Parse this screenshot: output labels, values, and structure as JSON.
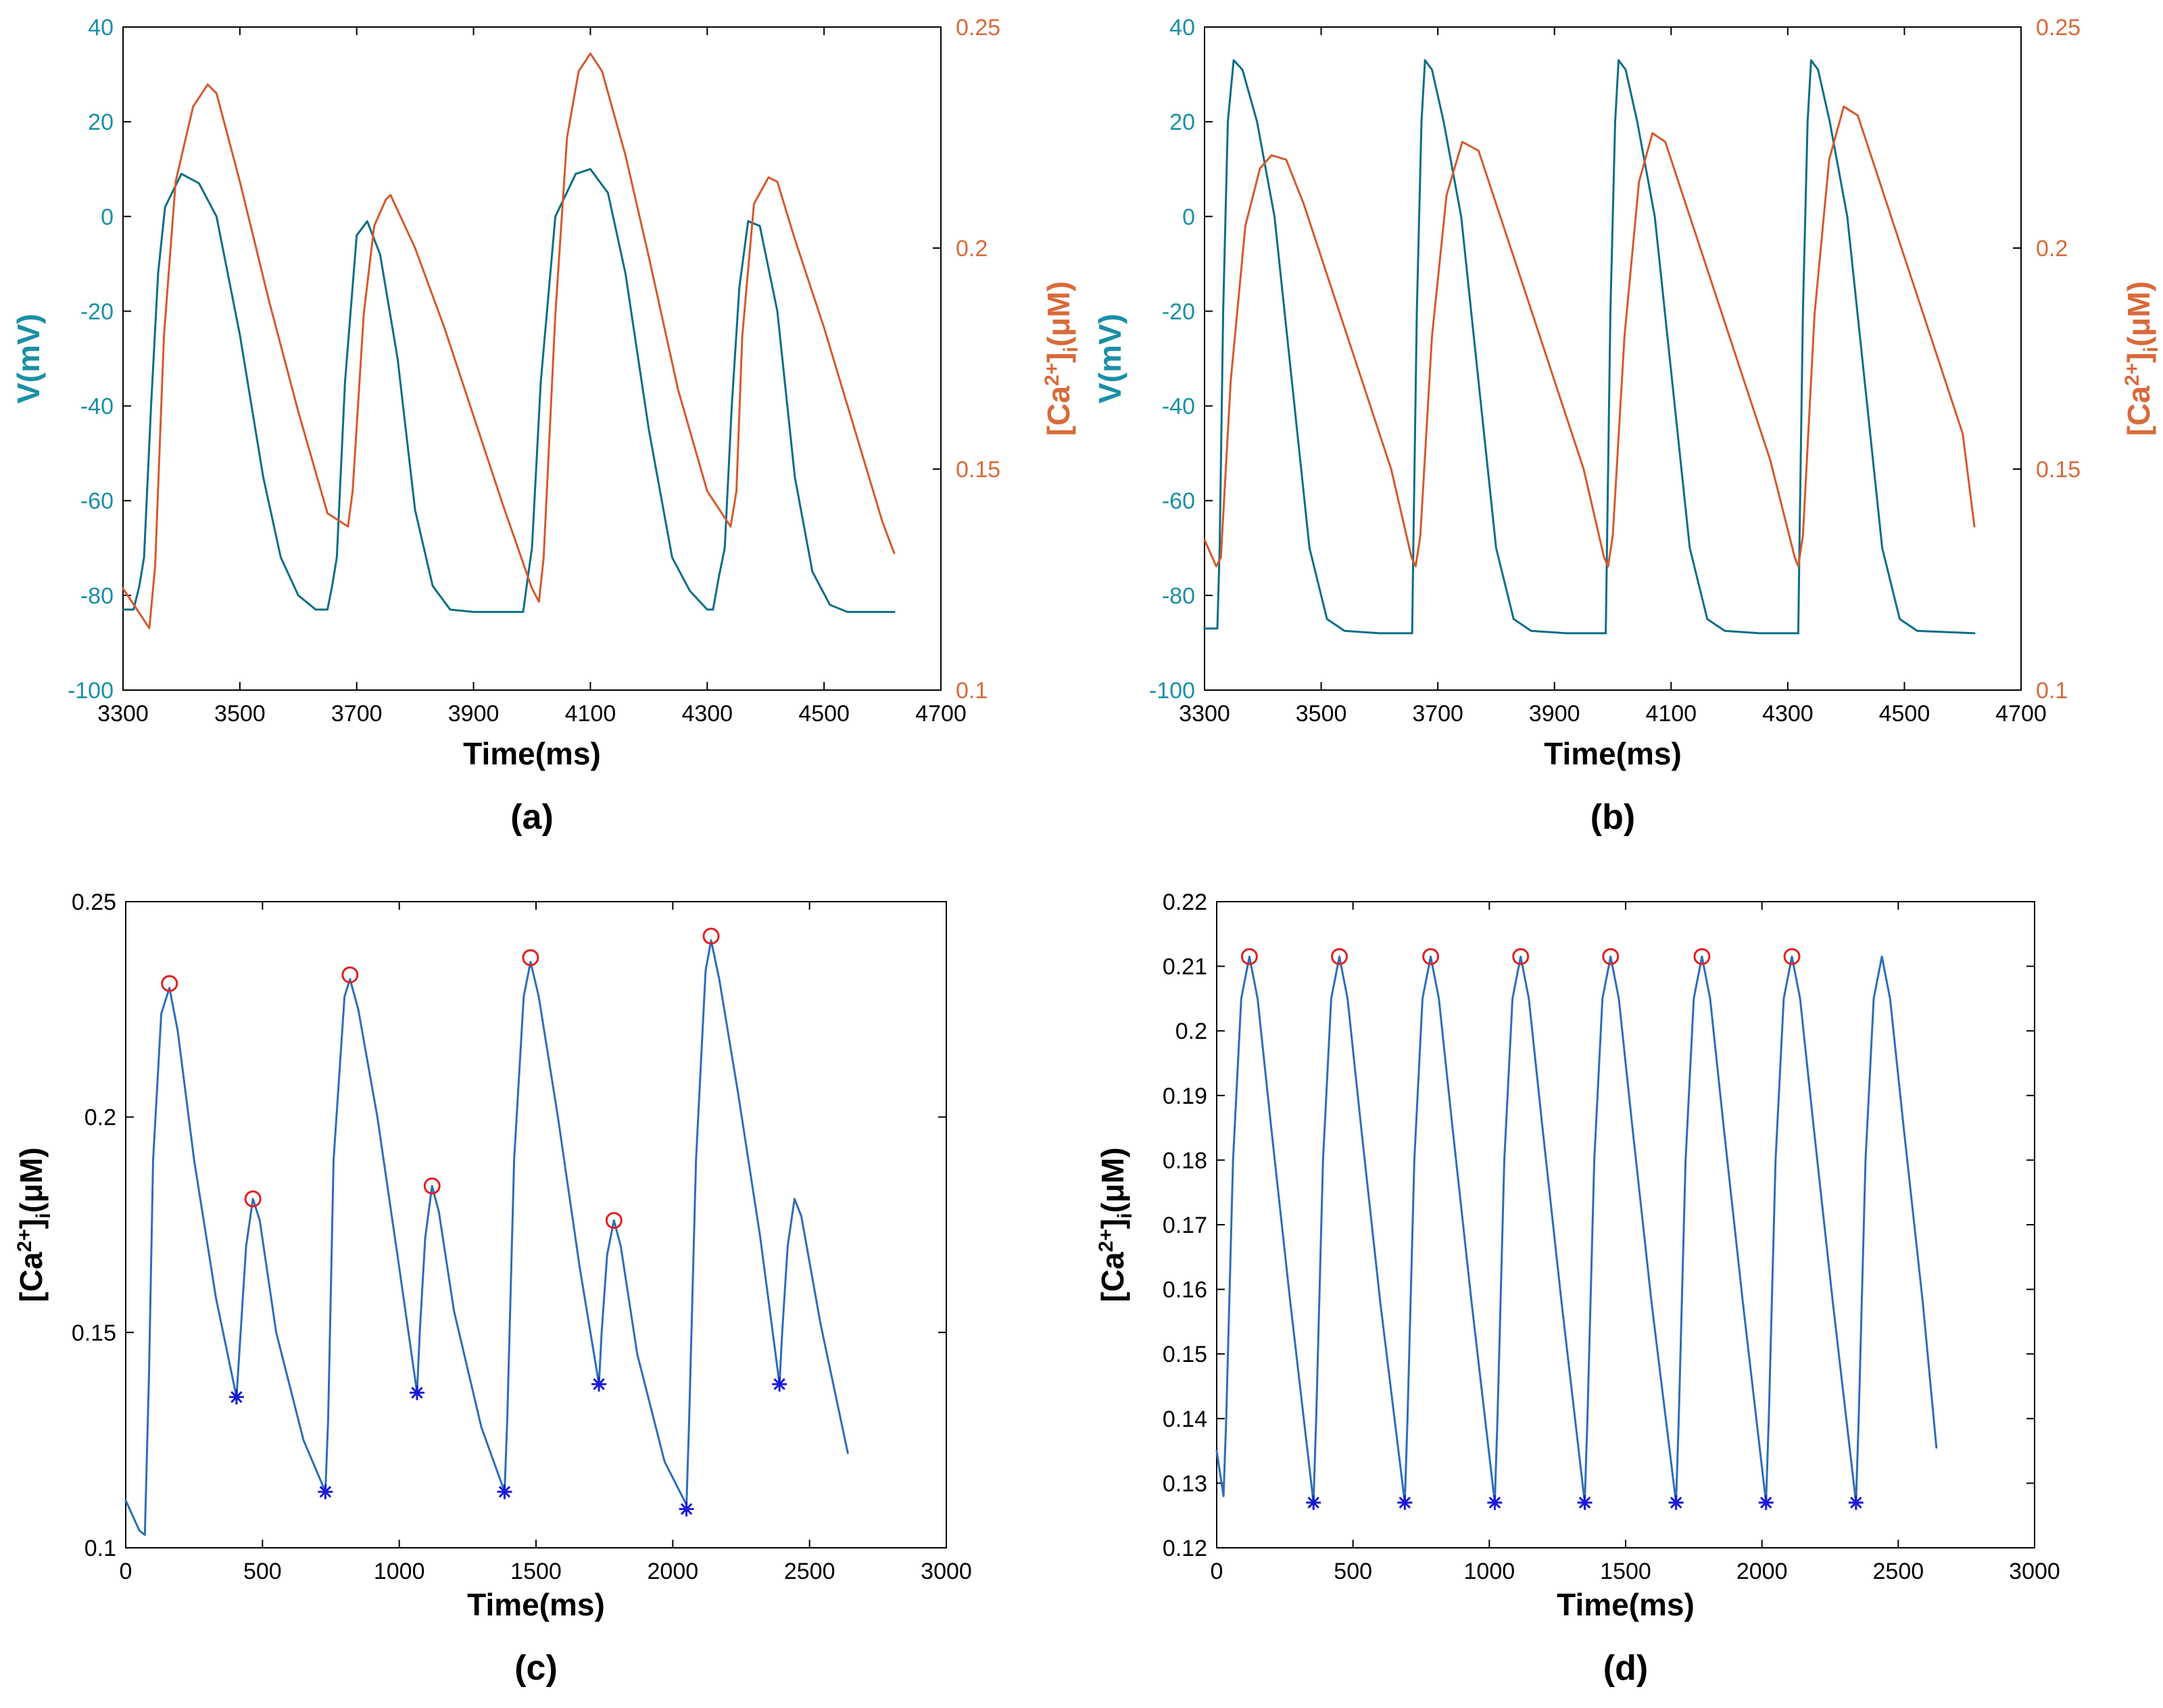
{
  "colors": {
    "voltage": "#0c6e86",
    "voltage_axis": "#1a8fa6",
    "calcium": "#d35a2e",
    "calcium_axis": "#d86a3a",
    "trace_blue": "#2e6db8",
    "peak_marker": "#e02020",
    "trough_marker": "#1a1ad8",
    "axis": "#000000"
  },
  "chart_data": [
    {
      "id": "a",
      "type": "line",
      "panel_label": "(a)",
      "xlabel": "Time(ms)",
      "ylabel_left": "V(mV)",
      "ylabel_right": "[Ca2+]i(μM)",
      "ylabel_right_parts": {
        "base": "[Ca",
        "sup": "2+",
        "mid": "]",
        "sub": "i",
        "end": "(μM)"
      },
      "xlim": [
        3300,
        4700
      ],
      "ylim_left": [
        -100,
        40
      ],
      "ylim_right": [
        0.1,
        0.25
      ],
      "xticks": [
        "3300",
        "3500",
        "3700",
        "3900",
        "4100",
        "4300",
        "4500",
        "4700"
      ],
      "yticks_left": [
        "-100",
        "-80",
        "-60",
        "-40",
        "-20",
        "0",
        "20",
        "40"
      ],
      "yticks_right": [
        "0.1",
        "0.15",
        "0.2",
        "0.25"
      ],
      "series": [
        {
          "name": "V",
          "axis": "left",
          "x": [
            3300,
            3318,
            3328,
            3336,
            3348,
            3360,
            3372,
            3400,
            3430,
            3460,
            3500,
            3540,
            3570,
            3600,
            3630,
            3650,
            3658,
            3666,
            3680,
            3700,
            3718,
            3740,
            3770,
            3800,
            3830,
            3860,
            3900,
            3950,
            3985,
            3992,
            4000,
            4015,
            4040,
            4075,
            4100,
            4130,
            4160,
            4200,
            4240,
            4270,
            4300,
            4310,
            4320,
            4330,
            4342,
            4355,
            4370,
            4390,
            4420,
            4450,
            4480,
            4510,
            4540,
            4600,
            4620
          ],
          "y": [
            -83,
            -83,
            -78,
            -72,
            -40,
            -12,
            2,
            9,
            7,
            0,
            -25,
            -55,
            -72,
            -80,
            -83,
            -83,
            -78,
            -72,
            -35,
            -4,
            -1,
            -8,
            -30,
            -62,
            -78,
            -83,
            -83.5,
            -83.5,
            -83.5,
            -77,
            -70,
            -35,
            0,
            9,
            10,
            5,
            -12,
            -45,
            -72,
            -79,
            -83,
            -83,
            -76,
            -70,
            -40,
            -15,
            -1,
            -2,
            -20,
            -55,
            -75,
            -82,
            -83.5,
            -83.5,
            -83.5
          ]
        },
        {
          "name": "[Ca2+]i",
          "axis": "right",
          "x": [
            3300,
            3320,
            3345,
            3355,
            3370,
            3390,
            3420,
            3445,
            3460,
            3500,
            3550,
            3600,
            3650,
            3685,
            3693,
            3712,
            3730,
            3750,
            3758,
            3800,
            3850,
            3900,
            3950,
            4000,
            4012,
            4020,
            4040,
            4060,
            4080,
            4100,
            4120,
            4160,
            4200,
            4250,
            4300,
            4340,
            4350,
            4360,
            4380,
            4405,
            4420,
            4450,
            4500,
            4550,
            4600,
            4620
          ],
          "y": [
            0.123,
            0.119,
            0.114,
            0.128,
            0.18,
            0.215,
            0.232,
            0.237,
            0.235,
            0.215,
            0.188,
            0.163,
            0.14,
            0.137,
            0.145,
            0.185,
            0.205,
            0.211,
            0.212,
            0.2,
            0.182,
            0.162,
            0.142,
            0.123,
            0.12,
            0.13,
            0.185,
            0.225,
            0.24,
            0.244,
            0.24,
            0.221,
            0.198,
            0.168,
            0.145,
            0.137,
            0.145,
            0.18,
            0.21,
            0.216,
            0.215,
            0.202,
            0.182,
            0.16,
            0.138,
            0.131
          ]
        }
      ]
    },
    {
      "id": "b",
      "type": "line",
      "panel_label": "(b)",
      "xlabel": "Time(ms)",
      "ylabel_left": "V(mV)",
      "ylabel_right": "[Ca2+]i(μM)",
      "ylabel_right_parts": {
        "base": "[Ca",
        "sup": "2+",
        "mid": "]",
        "sub": "i",
        "end": "(μM)"
      },
      "xlim": [
        3300,
        4700
      ],
      "ylim_left": [
        -100,
        40
      ],
      "ylim_right": [
        0.1,
        0.25
      ],
      "xticks": [
        "3300",
        "3500",
        "3700",
        "3900",
        "4100",
        "4300",
        "4500",
        "4700"
      ],
      "yticks_left": [
        "-100",
        "-80",
        "-60",
        "-40",
        "-20",
        "0",
        "20",
        "40"
      ],
      "yticks_right": [
        "0.1",
        "0.15",
        "0.2",
        "0.25"
      ],
      "series": [
        {
          "name": "V",
          "axis": "left",
          "x": [
            3300,
            3322,
            3326,
            3332,
            3340,
            3350,
            3365,
            3390,
            3420,
            3450,
            3480,
            3510,
            3540,
            3600,
            3656,
            3658,
            3664,
            3672,
            3678,
            3690,
            3710,
            3740,
            3770,
            3800,
            3830,
            3860,
            3920,
            3988,
            3990,
            3996,
            4004,
            4010,
            4022,
            4042,
            4072,
            4102,
            4132,
            4162,
            4192,
            4252,
            4318,
            4320,
            4326,
            4334,
            4340,
            4352,
            4372,
            4402,
            4432,
            4462,
            4492,
            4522,
            4620
          ],
          "y": [
            -87,
            -87,
            -70,
            -20,
            20,
            33,
            31,
            20,
            0,
            -35,
            -70,
            -85,
            -87.5,
            -88,
            -88,
            -70,
            -20,
            20,
            33,
            31,
            20,
            0,
            -35,
            -70,
            -85,
            -87.5,
            -88,
            -88,
            -70,
            -20,
            20,
            33,
            31,
            20,
            0,
            -35,
            -70,
            -85,
            -87.5,
            -88,
            -88,
            -70,
            -20,
            20,
            33,
            31,
            20,
            0,
            -35,
            -70,
            -85,
            -87.5,
            -88
          ]
        },
        {
          "name": "[Ca2+]i",
          "axis": "right",
          "x": [
            3300,
            3320,
            3328,
            3345,
            3370,
            3395,
            3415,
            3440,
            3470,
            3520,
            3570,
            3620,
            3655,
            3662,
            3670,
            3690,
            3715,
            3742,
            3770,
            3800,
            3850,
            3900,
            3950,
            3985,
            3992,
            4000,
            4020,
            4045,
            4068,
            4090,
            4120,
            4170,
            4220,
            4270,
            4312,
            4318,
            4326,
            4346,
            4371,
            4396,
            4420,
            4450,
            4500,
            4550,
            4600,
            4620
          ],
          "y": [
            0.134,
            0.128,
            0.13,
            0.17,
            0.205,
            0.218,
            0.221,
            0.22,
            0.21,
            0.19,
            0.17,
            0.15,
            0.13,
            0.128,
            0.135,
            0.18,
            0.212,
            0.224,
            0.222,
            0.21,
            0.19,
            0.17,
            0.15,
            0.13,
            0.128,
            0.135,
            0.18,
            0.215,
            0.226,
            0.224,
            0.212,
            0.192,
            0.172,
            0.152,
            0.13,
            0.128,
            0.135,
            0.185,
            0.22,
            0.232,
            0.23,
            0.218,
            0.198,
            0.178,
            0.158,
            0.137
          ]
        }
      ]
    },
    {
      "id": "c",
      "type": "line",
      "panel_label": "(c)",
      "xlabel": "Time(ms)",
      "ylabel": "[Ca2+]i(μM)",
      "ylabel_parts": {
        "base": "[Ca",
        "sup": "2+",
        "mid": "]",
        "sub": "i",
        "end": "(μM)"
      },
      "xlim": [
        0,
        3000
      ],
      "ylim": [
        0.1,
        0.25
      ],
      "xticks": [
        "0",
        "500",
        "1000",
        "1500",
        "2000",
        "2500",
        "3000"
      ],
      "yticks": [
        "0.1",
        "0.15",
        "0.2",
        "0.25"
      ],
      "series": [
        {
          "name": "[Ca2+]i",
          "x": [
            0,
            50,
            70,
            85,
            100,
            130,
            160,
            190,
            250,
            330,
            405,
            420,
            440,
            465,
            490,
            550,
            650,
            730,
            740,
            760,
            800,
            820,
            850,
            920,
            1000,
            1065,
            1075,
            1095,
            1120,
            1145,
            1200,
            1300,
            1385,
            1395,
            1420,
            1455,
            1480,
            1510,
            1580,
            1660,
            1730,
            1740,
            1760,
            1785,
            1810,
            1870,
            1970,
            2050,
            2060,
            2085,
            2120,
            2140,
            2170,
            2240,
            2320,
            2390,
            2400,
            2420,
            2445,
            2470,
            2540,
            2640
          ],
          "y": [
            0.111,
            0.104,
            0.103,
            0.14,
            0.19,
            0.224,
            0.23,
            0.22,
            0.19,
            0.158,
            0.135,
            0.15,
            0.17,
            0.181,
            0.176,
            0.15,
            0.125,
            0.113,
            0.13,
            0.19,
            0.228,
            0.232,
            0.225,
            0.2,
            0.165,
            0.136,
            0.15,
            0.172,
            0.184,
            0.178,
            0.155,
            0.128,
            0.113,
            0.13,
            0.19,
            0.228,
            0.236,
            0.228,
            0.2,
            0.165,
            0.138,
            0.15,
            0.168,
            0.176,
            0.17,
            0.145,
            0.12,
            0.11,
            0.13,
            0.19,
            0.234,
            0.241,
            0.232,
            0.205,
            0.172,
            0.138,
            0.15,
            0.17,
            0.181,
            0.177,
            0.152,
            0.122
          ]
        }
      ],
      "peaks": {
        "x": [
          160,
          465,
          820,
          1120,
          1480,
          1785,
          2140
        ],
        "y": [
          0.231,
          0.181,
          0.233,
          0.184,
          0.237,
          0.176,
          0.242
        ]
      },
      "troughs": {
        "x": [
          405,
          730,
          1065,
          1385,
          1730,
          2050,
          2390
        ],
        "y": [
          0.135,
          0.113,
          0.136,
          0.113,
          0.138,
          0.109,
          0.138
        ]
      }
    },
    {
      "id": "d",
      "type": "line",
      "panel_label": "(d)",
      "xlabel": "Time(ms)",
      "ylabel": "[Ca2+]i(μM)",
      "ylabel_parts": {
        "base": "[Ca",
        "sup": "2+",
        "mid": "]",
        "sub": "i",
        "end": "(μM)"
      },
      "xlim": [
        0,
        3000
      ],
      "ylim": [
        0.12,
        0.22
      ],
      "xticks": [
        "0",
        "500",
        "1000",
        "1500",
        "2000",
        "2500",
        "3000"
      ],
      "yticks": [
        "0.12",
        "0.13",
        "0.14",
        "0.15",
        "0.16",
        "0.17",
        "0.18",
        "0.19",
        "0.2",
        "0.21",
        "0.22"
      ],
      "series": [
        {
          "name": "[Ca2+]i",
          "x": [
            0,
            25,
            35,
            60,
            90,
            120,
            150,
            200,
            270,
            355,
            365,
            390,
            420,
            450,
            480,
            530,
            600,
            690,
            700,
            725,
            755,
            785,
            815,
            865,
            935,
            1020,
            1030,
            1055,
            1085,
            1115,
            1145,
            1195,
            1265,
            1350,
            1360,
            1385,
            1415,
            1445,
            1475,
            1525,
            1595,
            1685,
            1695,
            1720,
            1750,
            1780,
            1810,
            1860,
            1930,
            2015,
            2025,
            2050,
            2080,
            2110,
            2140,
            2190,
            2260,
            2345,
            2355,
            2380,
            2410,
            2440,
            2470,
            2520,
            2590,
            2640
          ],
          "y": [
            0.135,
            0.128,
            0.14,
            0.18,
            0.205,
            0.2115,
            0.205,
            0.185,
            0.158,
            0.127,
            0.14,
            0.18,
            0.205,
            0.2115,
            0.205,
            0.185,
            0.158,
            0.127,
            0.14,
            0.18,
            0.205,
            0.2115,
            0.205,
            0.185,
            0.158,
            0.127,
            0.14,
            0.18,
            0.205,
            0.2115,
            0.205,
            0.185,
            0.158,
            0.127,
            0.14,
            0.18,
            0.205,
            0.2115,
            0.205,
            0.185,
            0.158,
            0.127,
            0.14,
            0.18,
            0.205,
            0.2115,
            0.205,
            0.185,
            0.158,
            0.127,
            0.14,
            0.18,
            0.205,
            0.2115,
            0.205,
            0.185,
            0.158,
            0.127,
            0.14,
            0.18,
            0.205,
            0.2115,
            0.205,
            0.185,
            0.158,
            0.1355
          ]
        }
      ],
      "peaks": {
        "x": [
          120,
          450,
          785,
          1115,
          1445,
          1780,
          2110
        ],
        "y": [
          0.2115,
          0.2115,
          0.2115,
          0.2115,
          0.2115,
          0.2115,
          0.2115
        ]
      },
      "troughs": {
        "x": [
          355,
          690,
          1020,
          1350,
          1685,
          2015,
          2345
        ],
        "y": [
          0.127,
          0.127,
          0.127,
          0.127,
          0.127,
          0.127,
          0.127
        ]
      }
    }
  ]
}
